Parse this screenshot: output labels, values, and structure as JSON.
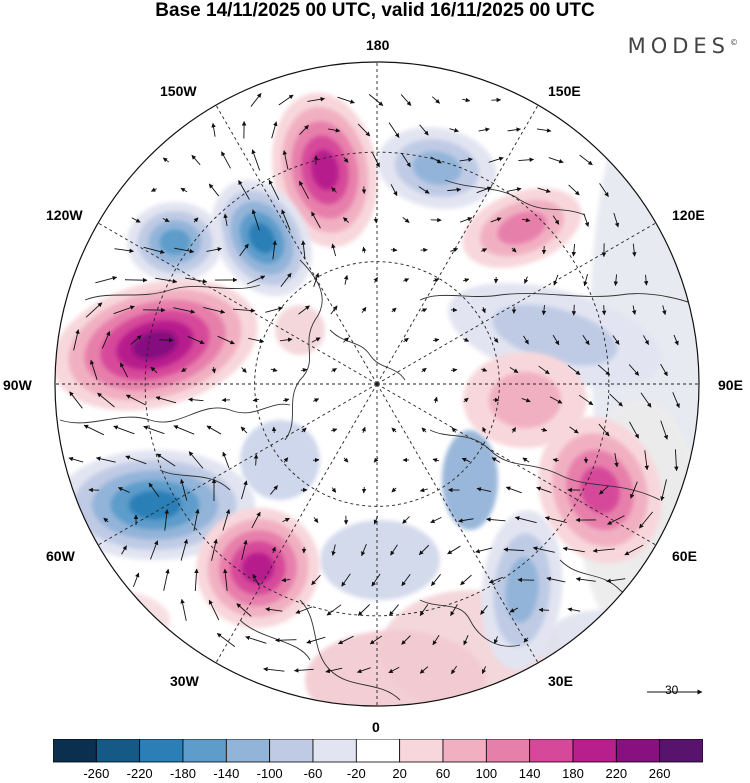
{
  "title": "Base 14/11/2025 00 UTC, valid 16/11/2025 00 UTC",
  "brand": "MODES",
  "brand_mark": "©",
  "longitude_labels": {
    "lon_0": "0",
    "lon_30e": "30E",
    "lon_60e": "60E",
    "lon_90e": "90E",
    "lon_120e": "120E",
    "lon_150e": "150E",
    "lon_180": "180",
    "lon_150w": "150W",
    "lon_120w": "120W",
    "lon_90w": "90W",
    "lon_60w": "60W",
    "lon_30w": "30W"
  },
  "reference_vector": {
    "label": "30"
  },
  "colorbar": {
    "labels": [
      "-260",
      "-220",
      "-180",
      "-140",
      "-100",
      "-60",
      "-20",
      "20",
      "60",
      "100",
      "140",
      "180",
      "220",
      "260"
    ],
    "colors": [
      "#0b2f4f",
      "#155a87",
      "#2b7fb6",
      "#5d9ccb",
      "#93b4d9",
      "#bfcbe5",
      "#e2e4f1",
      "#ffffff",
      "#f8d7dc",
      "#f1b0c2",
      "#e77fab",
      "#d6489a",
      "#b71f8d",
      "#86117f",
      "#58146d"
    ]
  },
  "anomaly_centers": [
    {
      "name": "pacific-high",
      "value": 220
    },
    {
      "name": "bering-low",
      "value": -140
    },
    {
      "name": "alaska-low",
      "value": -200
    },
    {
      "name": "canada-low",
      "value": -180
    },
    {
      "name": "siberia-high",
      "value": 140
    },
    {
      "name": "north-america-high",
      "value": 240
    },
    {
      "name": "atlantic-low",
      "value": -220
    },
    {
      "name": "north-atlantic-high",
      "value": 220
    },
    {
      "name": "europe-low",
      "value": -140
    },
    {
      "name": "russia-low",
      "value": -100
    },
    {
      "name": "kazakhstan-high",
      "value": 180
    },
    {
      "name": "central-asia-high",
      "value": 100
    }
  ]
}
